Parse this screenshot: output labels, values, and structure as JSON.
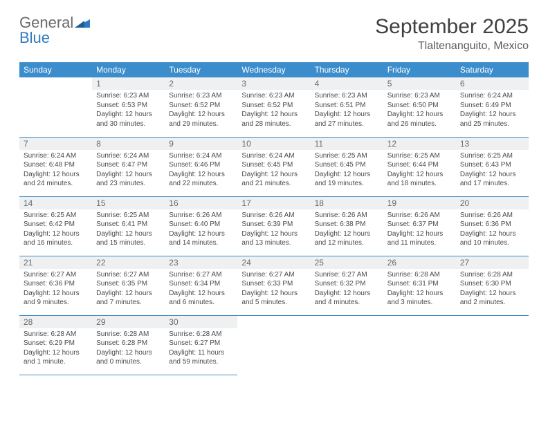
{
  "brand": {
    "part1": "General",
    "part2": "Blue"
  },
  "title": "September 2025",
  "location": "Tlaltenanguito, Mexico",
  "header_bg": "#3c8dcc",
  "header_fg": "#ffffff",
  "daynum_bg": "#eef0f1",
  "rule_color": "#3c8dcc",
  "text_color": "#4a4a4a",
  "title_color": "#404040",
  "font_family": "Arial, Helvetica, sans-serif",
  "month_title_fontsize": 30,
  "location_fontsize": 16,
  "dayhead_fontsize": 12,
  "cell_fontsize": 10,
  "day_names": [
    "Sunday",
    "Monday",
    "Tuesday",
    "Wednesday",
    "Thursday",
    "Friday",
    "Saturday"
  ],
  "weeks": [
    [
      null,
      {
        "n": "1",
        "sr": "6:23 AM",
        "ss": "6:53 PM",
        "dl": "12 hours and 30 minutes."
      },
      {
        "n": "2",
        "sr": "6:23 AM",
        "ss": "6:52 PM",
        "dl": "12 hours and 29 minutes."
      },
      {
        "n": "3",
        "sr": "6:23 AM",
        "ss": "6:52 PM",
        "dl": "12 hours and 28 minutes."
      },
      {
        "n": "4",
        "sr": "6:23 AM",
        "ss": "6:51 PM",
        "dl": "12 hours and 27 minutes."
      },
      {
        "n": "5",
        "sr": "6:23 AM",
        "ss": "6:50 PM",
        "dl": "12 hours and 26 minutes."
      },
      {
        "n": "6",
        "sr": "6:24 AM",
        "ss": "6:49 PM",
        "dl": "12 hours and 25 minutes."
      }
    ],
    [
      {
        "n": "7",
        "sr": "6:24 AM",
        "ss": "6:48 PM",
        "dl": "12 hours and 24 minutes."
      },
      {
        "n": "8",
        "sr": "6:24 AM",
        "ss": "6:47 PM",
        "dl": "12 hours and 23 minutes."
      },
      {
        "n": "9",
        "sr": "6:24 AM",
        "ss": "6:46 PM",
        "dl": "12 hours and 22 minutes."
      },
      {
        "n": "10",
        "sr": "6:24 AM",
        "ss": "6:45 PM",
        "dl": "12 hours and 21 minutes."
      },
      {
        "n": "11",
        "sr": "6:25 AM",
        "ss": "6:45 PM",
        "dl": "12 hours and 19 minutes."
      },
      {
        "n": "12",
        "sr": "6:25 AM",
        "ss": "6:44 PM",
        "dl": "12 hours and 18 minutes."
      },
      {
        "n": "13",
        "sr": "6:25 AM",
        "ss": "6:43 PM",
        "dl": "12 hours and 17 minutes."
      }
    ],
    [
      {
        "n": "14",
        "sr": "6:25 AM",
        "ss": "6:42 PM",
        "dl": "12 hours and 16 minutes."
      },
      {
        "n": "15",
        "sr": "6:25 AM",
        "ss": "6:41 PM",
        "dl": "12 hours and 15 minutes."
      },
      {
        "n": "16",
        "sr": "6:26 AM",
        "ss": "6:40 PM",
        "dl": "12 hours and 14 minutes."
      },
      {
        "n": "17",
        "sr": "6:26 AM",
        "ss": "6:39 PM",
        "dl": "12 hours and 13 minutes."
      },
      {
        "n": "18",
        "sr": "6:26 AM",
        "ss": "6:38 PM",
        "dl": "12 hours and 12 minutes."
      },
      {
        "n": "19",
        "sr": "6:26 AM",
        "ss": "6:37 PM",
        "dl": "12 hours and 11 minutes."
      },
      {
        "n": "20",
        "sr": "6:26 AM",
        "ss": "6:36 PM",
        "dl": "12 hours and 10 minutes."
      }
    ],
    [
      {
        "n": "21",
        "sr": "6:27 AM",
        "ss": "6:36 PM",
        "dl": "12 hours and 9 minutes."
      },
      {
        "n": "22",
        "sr": "6:27 AM",
        "ss": "6:35 PM",
        "dl": "12 hours and 7 minutes."
      },
      {
        "n": "23",
        "sr": "6:27 AM",
        "ss": "6:34 PM",
        "dl": "12 hours and 6 minutes."
      },
      {
        "n": "24",
        "sr": "6:27 AM",
        "ss": "6:33 PM",
        "dl": "12 hours and 5 minutes."
      },
      {
        "n": "25",
        "sr": "6:27 AM",
        "ss": "6:32 PM",
        "dl": "12 hours and 4 minutes."
      },
      {
        "n": "26",
        "sr": "6:28 AM",
        "ss": "6:31 PM",
        "dl": "12 hours and 3 minutes."
      },
      {
        "n": "27",
        "sr": "6:28 AM",
        "ss": "6:30 PM",
        "dl": "12 hours and 2 minutes."
      }
    ],
    [
      {
        "n": "28",
        "sr": "6:28 AM",
        "ss": "6:29 PM",
        "dl": "12 hours and 1 minute."
      },
      {
        "n": "29",
        "sr": "6:28 AM",
        "ss": "6:28 PM",
        "dl": "12 hours and 0 minutes."
      },
      {
        "n": "30",
        "sr": "6:28 AM",
        "ss": "6:27 PM",
        "dl": "11 hours and 59 minutes."
      },
      null,
      null,
      null,
      null
    ]
  ],
  "labels": {
    "sunrise": "Sunrise:",
    "sunset": "Sunset:",
    "daylight": "Daylight:"
  }
}
